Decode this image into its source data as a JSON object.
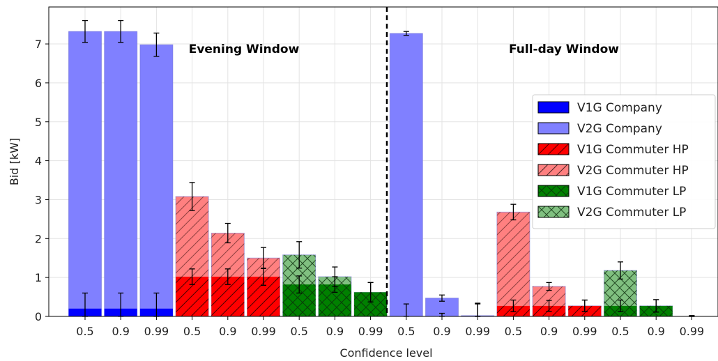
{
  "chart_data": {
    "type": "bar",
    "xlabel": "Confidence level",
    "ylabel": "Bid [kW]",
    "ylim": [
      0,
      7.95
    ],
    "yticks": [
      "0",
      "1",
      "2",
      "3",
      "4",
      "5",
      "6",
      "7"
    ],
    "grid": true,
    "legend_position": "right",
    "annotations": [
      "Evening Window",
      "Full-day Window"
    ],
    "categories": [
      "0.5",
      "0.9",
      "0.99",
      "0.5",
      "0.9",
      "0.99",
      "0.5",
      "0.9",
      "0.99",
      "0.5",
      "0.9",
      "0.99",
      "0.5",
      "0.9",
      "0.99",
      "0.5",
      "0.9",
      "0.99"
    ],
    "windows": [
      {
        "name": "Evening Window",
        "groups": [
          {
            "v1g_name": "V1G Company",
            "v2g_name": "V2G Company",
            "v1g": [
              0.2,
              0.2,
              0.2
            ],
            "v2g": [
              7.32,
              7.32,
              6.98
            ],
            "v1g_err": [
              0.4,
              0.4,
              0.4
            ],
            "v2g_err": [
              0.28,
              0.28,
              0.3
            ]
          },
          {
            "v1g_name": "V1G Commuter HP",
            "v2g_name": "V2G Commuter HP",
            "v1g": [
              1.02,
              1.02,
              1.02
            ],
            "v2g": [
              3.08,
              2.14,
              1.5
            ],
            "v1g_err": [
              0.2,
              0.2,
              0.22
            ],
            "v2g_err": [
              0.36,
              0.25,
              0.27
            ]
          },
          {
            "v1g_name": "V1G Commuter LP",
            "v2g_name": "V2G Commuter LP",
            "v1g": [
              0.82,
              0.82,
              0.62
            ],
            "v2g": [
              1.58,
              1.02,
              0.62
            ],
            "v1g_err": [
              0.22,
              0.2,
              0.25
            ],
            "v2g_err": [
              0.34,
              0.25,
              0.25
            ]
          }
        ]
      },
      {
        "name": "Full-day Window",
        "groups": [
          {
            "v1g_name": "V1G Company",
            "v2g_name": "V2G Company",
            "v1g": [
              0.0,
              0.0,
              0.0
            ],
            "v2g": [
              7.27,
              0.47,
              0.02
            ],
            "v1g_err": [
              0.32,
              0.08,
              0.32
            ],
            "v2g_err": [
              0.05,
              0.08,
              0.32
            ]
          },
          {
            "v1g_name": "V1G Commuter HP",
            "v2g_name": "V2G Commuter HP",
            "v1g": [
              0.27,
              0.27,
              0.27
            ],
            "v2g": [
              2.68,
              0.77,
              0.27
            ],
            "v1g_err": [
              0.15,
              0.14,
              0.15
            ],
            "v2g_err": [
              0.2,
              0.1,
              0.15
            ]
          },
          {
            "v1g_name": "V1G Commuter LP",
            "v2g_name": "V2G Commuter LP",
            "v1g": [
              0.27,
              0.27,
              0.0
            ],
            "v2g": [
              1.18,
              0.27,
              0.0
            ],
            "v1g_err": [
              0.15,
              0.16,
              0.02
            ],
            "v2g_err": [
              0.22,
              0.16,
              0.02
            ]
          }
        ]
      }
    ],
    "legend": [
      {
        "label": "V1G Company",
        "color": "#0000ff",
        "hatch": "none"
      },
      {
        "label": "V2G Company",
        "color": "#8080ff",
        "hatch": "none"
      },
      {
        "label": "V1G Commuter HP",
        "color": "#ff0000",
        "hatch": "diag"
      },
      {
        "label": "V2G Commuter HP",
        "color": "#ff8080",
        "hatch": "diag"
      },
      {
        "label": "V1G Commuter LP",
        "color": "#008000",
        "hatch": "cross"
      },
      {
        "label": "V2G Commuter LP",
        "color": "#80c080",
        "hatch": "cross"
      }
    ]
  }
}
